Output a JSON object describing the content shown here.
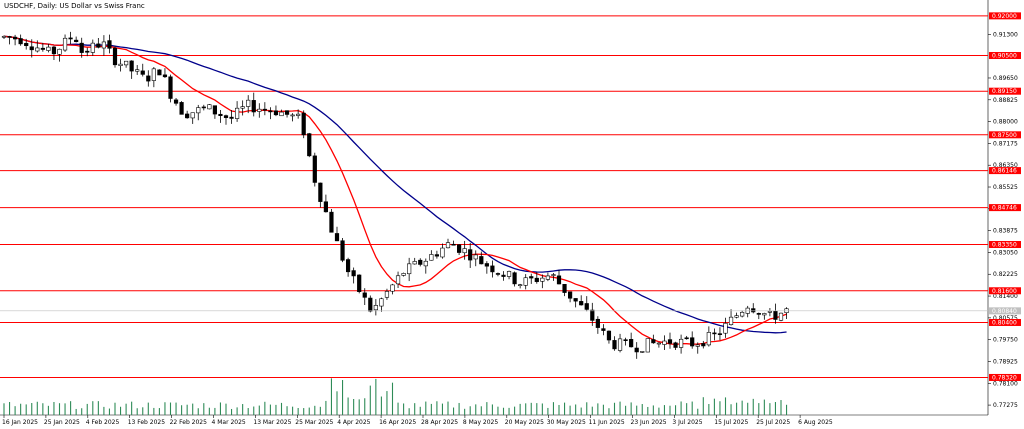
{
  "chart_data": {
    "type": "candlestick",
    "title": "USDCHF, Daily:  US Dollar vs Swiss Franc",
    "ylim": [
      0.769,
      0.926
    ],
    "y_ticks": [
      "0.91300",
      "0.89650",
      "0.88825",
      "0.88000",
      "0.87175",
      "0.86350",
      "0.85525",
      "0.84700",
      "0.83875",
      "0.83050",
      "0.82225",
      "0.81400",
      "0.80575",
      "0.79750",
      "0.78925",
      "0.78100",
      "0.77275"
    ],
    "levels": [
      "0.92000",
      "0.90500",
      "0.89150",
      "0.87500",
      "0.86146",
      "0.84746",
      "0.83350",
      "0.81600",
      "0.80400",
      "0.78320"
    ],
    "current_price": "0.80840",
    "x_labels": [
      "16 Jan 2025",
      "25 Jan 2025",
      "4 Feb 2025",
      "13 Feb 2025",
      "22 Feb 2025",
      "4 Mar 2025",
      "13 Mar 2025",
      "25 Mar 2025",
      "4 Apr 2025",
      "16 Apr 2025",
      "28 Apr 2025",
      "8 May 2025",
      "20 May 2025",
      "30 May 2025",
      "11 Jun 2025",
      "23 Jun 2025",
      "3 Jul 2025",
      "15 Jul 2025",
      "25 Jul 2025",
      "6 Aug 2025"
    ],
    "colors": {
      "level_line": "#ff0000",
      "level_label_bg": "#ff0000",
      "fast_ma": "#ff0000",
      "slow_ma": "#00008b",
      "volume": "#2e8b57",
      "candle": "#000000",
      "price_label_bg": "#c0c0c0"
    }
  }
}
